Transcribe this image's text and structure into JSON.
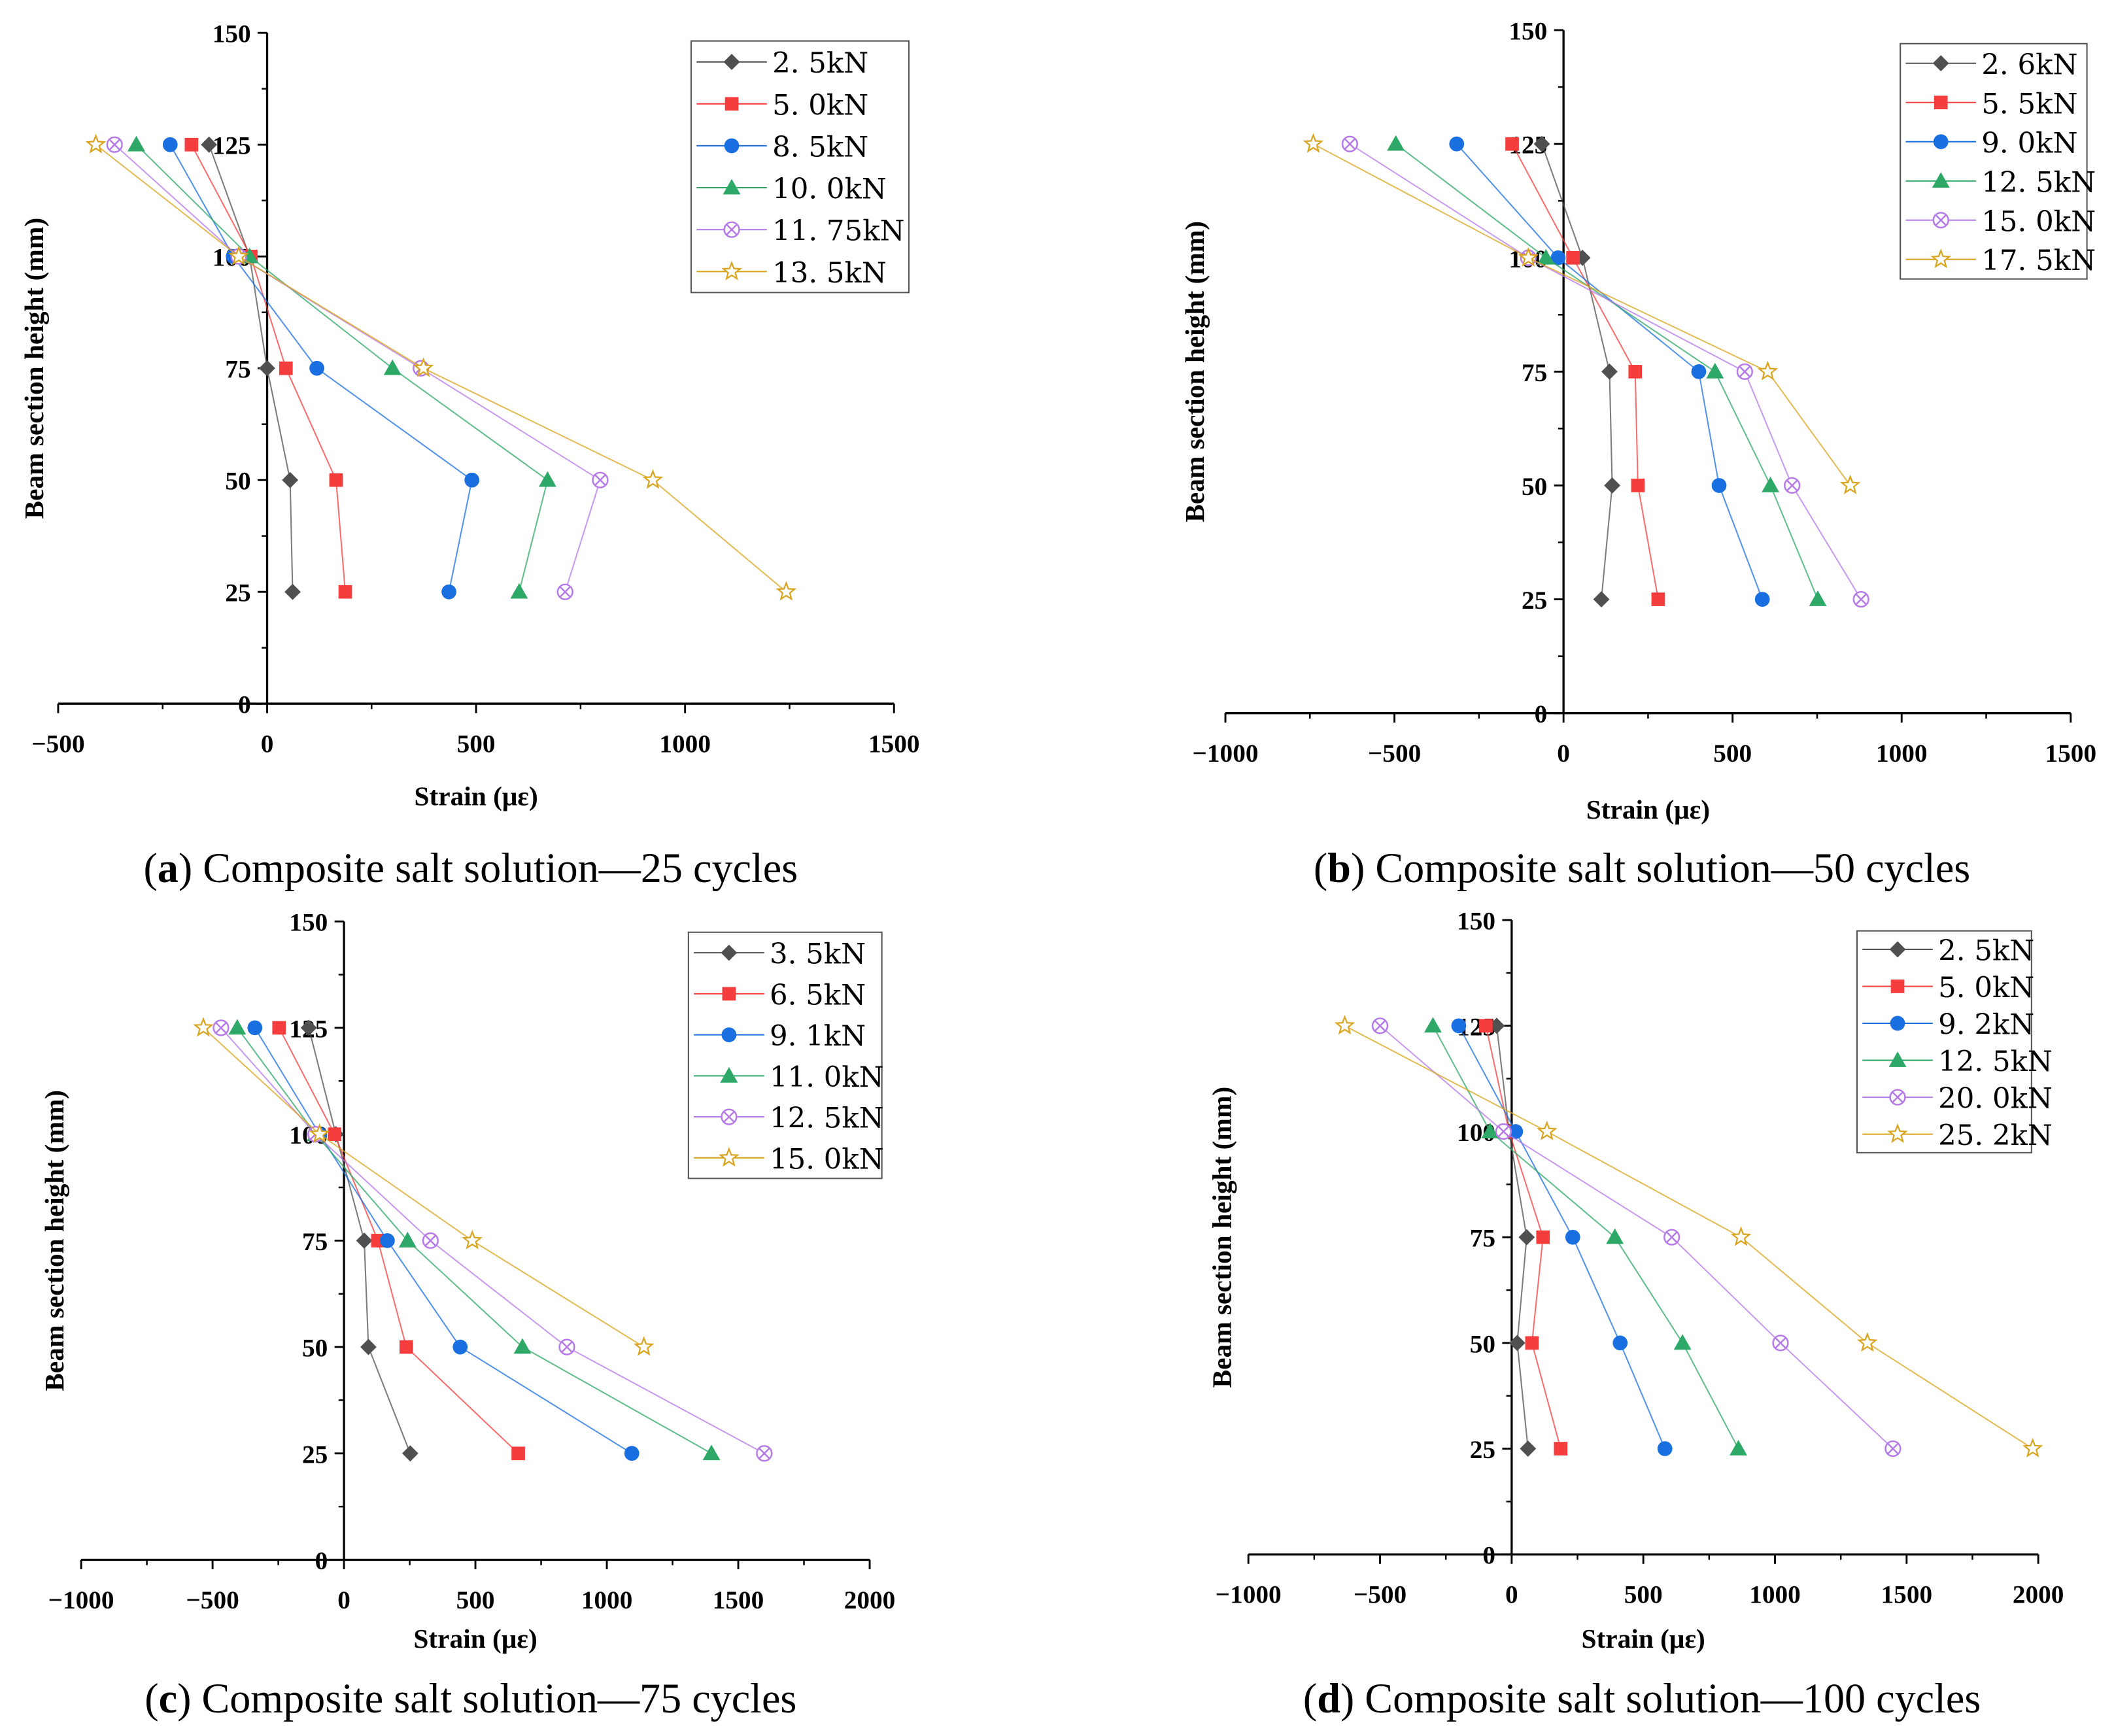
{
  "chart_data": [
    {
      "type": "line",
      "panel": "a",
      "caption_letter": "a",
      "caption_text": " Composite salt solution—25 cycles",
      "xlabel": "Strain (με)",
      "ylabel": "Beam section height (mm)",
      "xlim": [
        -500,
        1500
      ],
      "ylim": [
        0,
        150
      ],
      "xticks": [
        -500,
        0,
        500,
        1000,
        1500
      ],
      "yticks": [
        0,
        25,
        50,
        75,
        100,
        125,
        150
      ],
      "legend_position": "top-right",
      "series": [
        {
          "name": "2. 5kN",
          "marker": "diamond",
          "color": "#505050",
          "points": [
            [
              -139,
              125
            ],
            [
              -42,
              100
            ],
            [
              0,
              75
            ],
            [
              55,
              50
            ],
            [
              61,
              25
            ]
          ]
        },
        {
          "name": "5. 0kN",
          "marker": "square",
          "color": "#f53d3d",
          "points": [
            [
              -181,
              125
            ],
            [
              -39,
              100
            ],
            [
              45,
              75
            ],
            [
              165,
              50
            ],
            [
              187,
              25
            ]
          ]
        },
        {
          "name": "8. 5kN",
          "marker": "circle",
          "color": "#1a6fe0",
          "points": [
            [
              -232,
              125
            ],
            [
              -81,
              100
            ],
            [
              119,
              75
            ],
            [
              490,
              50
            ],
            [
              435,
              25
            ]
          ]
        },
        {
          "name": "10. 0kN",
          "marker": "triangle",
          "color": "#2ea866",
          "points": [
            [
              -313,
              125
            ],
            [
              -42,
              100
            ],
            [
              300,
              75
            ],
            [
              671,
              50
            ],
            [
              603,
              25
            ]
          ]
        },
        {
          "name": "11. 75kN",
          "marker": "circle-x",
          "color": "#b57ae8",
          "points": [
            [
              -365,
              125
            ],
            [
              -68,
              100
            ],
            [
              368,
              75
            ],
            [
              797,
              50
            ],
            [
              713,
              25
            ]
          ]
        },
        {
          "name": "13. 5kN",
          "marker": "star",
          "color": "#d9a520",
          "points": [
            [
              -410,
              125
            ],
            [
              -68,
              100
            ],
            [
              374,
              75
            ],
            [
              923,
              50
            ],
            [
              1242,
              25
            ]
          ]
        }
      ]
    },
    {
      "type": "line",
      "panel": "b",
      "caption_letter": "b",
      "caption_text": " Composite salt solution—50 cycles",
      "xlabel": "Strain (με)",
      "ylabel": "Beam section height (mm)",
      "xlim": [
        -1000,
        1500
      ],
      "ylim": [
        0,
        150
      ],
      "xticks": [
        -1000,
        -500,
        0,
        500,
        1000,
        1500
      ],
      "yticks": [
        0,
        25,
        50,
        75,
        100,
        125,
        150
      ],
      "legend_position": "top-right",
      "series": [
        {
          "name": "2. 6kN",
          "marker": "diamond",
          "color": "#505050",
          "points": [
            [
              -64,
              125
            ],
            [
              56,
              100
            ],
            [
              136,
              75
            ],
            [
              144,
              50
            ],
            [
              112,
              25
            ]
          ]
        },
        {
          "name": "5. 5kN",
          "marker": "square",
          "color": "#f53d3d",
          "points": [
            [
              -152,
              125
            ],
            [
              28,
              100
            ],
            [
              212,
              75
            ],
            [
              220,
              50
            ],
            [
              280,
              25
            ]
          ]
        },
        {
          "name": "9. 0kN",
          "marker": "circle",
          "color": "#1a6fe0",
          "points": [
            [
              -316,
              125
            ],
            [
              -16,
              100
            ],
            [
              400,
              75
            ],
            [
              460,
              50
            ],
            [
              588,
              25
            ]
          ]
        },
        {
          "name": "12. 5kN",
          "marker": "triangle",
          "color": "#2ea866",
          "points": [
            [
              -496,
              125
            ],
            [
              -52,
              100
            ],
            [
              448,
              75
            ],
            [
              612,
              50
            ],
            [
              752,
              25
            ]
          ]
        },
        {
          "name": "15. 0kN",
          "marker": "circle-x",
          "color": "#b57ae8",
          "points": [
            [
              -632,
              125
            ],
            [
              -104,
              100
            ],
            [
              536,
              75
            ],
            [
              676,
              50
            ],
            [
              880,
              25
            ]
          ]
        },
        {
          "name": "17. 5kN",
          "marker": "star",
          "color": "#d9a520",
          "points": [
            [
              -740,
              125
            ],
            [
              -104,
              100
            ],
            [
              604,
              75
            ],
            [
              848,
              50
            ]
          ]
        }
      ]
    },
    {
      "type": "line",
      "panel": "c",
      "caption_letter": "c",
      "caption_text": " Composite salt solution—75 cycles",
      "xlabel": "Strain (με)",
      "ylabel": "Beam section height (mm)",
      "xlim": [
        -1000,
        2000
      ],
      "ylim": [
        0,
        150
      ],
      "xticks": [
        -1000,
        -500,
        0,
        500,
        1000,
        1500,
        2000
      ],
      "yticks": [
        0,
        25,
        50,
        75,
        100,
        125,
        150
      ],
      "legend_position": "top-right",
      "series": [
        {
          "name": "3. 5kN",
          "marker": "diamond",
          "color": "#505050",
          "points": [
            [
              -134,
              125
            ],
            [
              -31,
              100
            ],
            [
              77,
              75
            ],
            [
              93,
              50
            ],
            [
              252,
              25
            ]
          ]
        },
        {
          "name": "6. 5kN",
          "marker": "square",
          "color": "#f53d3d",
          "points": [
            [
              -247,
              125
            ],
            [
              -36,
              100
            ],
            [
              129,
              75
            ],
            [
              237,
              50
            ],
            [
              663,
              25
            ]
          ]
        },
        {
          "name": "9. 1kN",
          "marker": "circle",
          "color": "#1a6fe0",
          "points": [
            [
              -339,
              125
            ],
            [
              -93,
              100
            ],
            [
              165,
              75
            ],
            [
              442,
              50
            ],
            [
              1095,
              25
            ]
          ]
        },
        {
          "name": "11. 0kN",
          "marker": "triangle",
          "color": "#2ea866",
          "points": [
            [
              -406,
              125
            ],
            [
              -108,
              100
            ],
            [
              242,
              75
            ],
            [
              679,
              50
            ],
            [
              1398,
              25
            ]
          ]
        },
        {
          "name": "12. 5kN",
          "marker": "circle-x",
          "color": "#b57ae8",
          "points": [
            [
              -468,
              125
            ],
            [
              -108,
              100
            ],
            [
              329,
              75
            ],
            [
              848,
              50
            ],
            [
              1599,
              25
            ]
          ]
        },
        {
          "name": "15. 0kN",
          "marker": "star",
          "color": "#d9a520",
          "points": [
            [
              -535,
              125
            ],
            [
              -93,
              100
            ],
            [
              488,
              75
            ],
            [
              1141,
              50
            ]
          ]
        }
      ]
    },
    {
      "type": "line",
      "panel": "d",
      "caption_letter": "d",
      "caption_text": " Composite salt solution—100 cycles",
      "xlabel": "Strain (με)",
      "ylabel": "Beam section height (mm)",
      "xlim": [
        -1000,
        2000
      ],
      "ylim": [
        0,
        150
      ],
      "xticks": [
        -1000,
        -500,
        0,
        500,
        1000,
        1500,
        2000
      ],
      "yticks": [
        0,
        25,
        50,
        75,
        100,
        125,
        150
      ],
      "legend_position": "top-right",
      "series": [
        {
          "name": "2. 5kN",
          "marker": "diamond",
          "color": "#505050",
          "points": [
            [
              -57,
              125
            ],
            [
              -10,
              100
            ],
            [
              57,
              75
            ],
            [
              21,
              50
            ],
            [
              62,
              25
            ]
          ]
        },
        {
          "name": "5. 0kN",
          "marker": "square",
          "color": "#f53d3d",
          "points": [
            [
              -98,
              125
            ],
            [
              -10,
              100
            ],
            [
              119,
              75
            ],
            [
              77,
              50
            ],
            [
              186,
              25
            ]
          ]
        },
        {
          "name": "9. 2kN",
          "marker": "circle",
          "color": "#1a6fe0",
          "points": [
            [
              -201,
              125
            ],
            [
              15,
              100
            ],
            [
              232,
              75
            ],
            [
              412,
              50
            ],
            [
              582,
              25
            ]
          ]
        },
        {
          "name": "12. 5kN",
          "marker": "triangle",
          "color": "#2ea866",
          "points": [
            [
              -299,
              125
            ],
            [
              -82,
              100
            ],
            [
              392,
              75
            ],
            [
              649,
              50
            ],
            [
              861,
              25
            ]
          ]
        },
        {
          "name": "20. 0kN",
          "marker": "circle-x",
          "color": "#b57ae8",
          "points": [
            [
              -500,
              125
            ],
            [
              -31,
              100
            ],
            [
              608,
              75
            ],
            [
              1021,
              50
            ],
            [
              1448,
              25
            ]
          ]
        },
        {
          "name": "25. 2kN",
          "marker": "star",
          "color": "#d9a520",
          "points": [
            [
              -634,
              125
            ],
            [
              134,
              100
            ],
            [
              871,
              75
            ],
            [
              1351,
              50
            ],
            [
              1979,
              25
            ]
          ]
        }
      ]
    }
  ]
}
